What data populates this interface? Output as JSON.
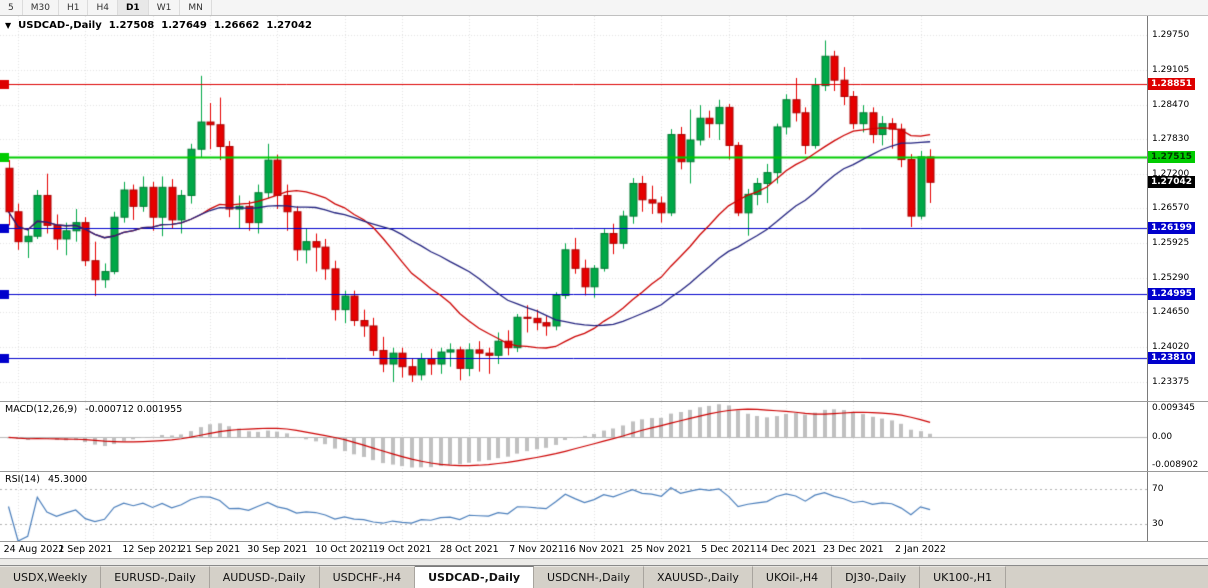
{
  "toolbar": {
    "timeframes": [
      "5",
      "M30",
      "H1",
      "H4",
      "D1",
      "W1",
      "MN"
    ],
    "active": "D1"
  },
  "chart_header": {
    "dropdown_icon": "▼",
    "symbol": "USDCAD-,Daily",
    "open": "1.27508",
    "high": "1.27649",
    "low": "1.26662",
    "close": "1.27042"
  },
  "colors": {
    "up": "#00a847",
    "up_border": "#007a33",
    "down": "#e60000",
    "down_border": "#aa0000",
    "grid": "#e3e3e3",
    "panel_border": "#9a9a9a",
    "current_price_bg": "#000000"
  },
  "chart_data": {
    "type": "candlestick",
    "title": "USDCAD-,Daily",
    "symbol": "USDCAD",
    "timeframe": "Daily",
    "price_range": [
      1.2302,
      1.301
    ],
    "price_axis_ticks": [
      "1.29750",
      "1.29105",
      "1.28470",
      "1.27830",
      "1.27200",
      "1.26570",
      "1.25925",
      "1.25290",
      "1.24650",
      "1.24020",
      "1.23375"
    ],
    "x_labels": [
      "24 Aug 2021",
      "2 Sep 2021",
      "12 Sep 2021",
      "21 Sep 2021",
      "30 Sep 2021",
      "10 Oct 2021",
      "19 Oct 2021",
      "28 Oct 2021",
      "7 Nov 2021",
      "16 Nov 2021",
      "25 Nov 2021",
      "5 Dec 2021",
      "14 Dec 2021",
      "23 Dec 2021",
      "2 Jan 2022"
    ],
    "x_label_bar_indices": [
      1,
      8,
      15,
      21,
      28,
      35,
      41,
      48,
      55,
      61,
      68,
      75,
      81,
      88,
      95
    ],
    "levels": [
      {
        "price": 1.28851,
        "label": "1.28851",
        "color": "#dd0000",
        "text_color": "#ffffff",
        "width": 1
      },
      {
        "price": 1.27515,
        "label": "1.27515",
        "color": "#00cc00",
        "text_color": "#003300",
        "width": 2
      },
      {
        "price": 1.26199,
        "label": "1.26199",
        "color": "#0000cc",
        "text_color": "#ffffff",
        "width": 1
      },
      {
        "price": 1.24995,
        "label": "1.24995",
        "color": "#0000cc",
        "text_color": "#ffffff",
        "width": 1
      },
      {
        "price": 1.2381,
        "label": "1.23810",
        "color": "#0000cc",
        "text_color": "#ffffff",
        "width": 1
      }
    ],
    "current_price": {
      "price": 1.27042,
      "label": "1.27042",
      "color": "#000000",
      "text_color": "#ffffff"
    },
    "overlays": [
      {
        "name": "ma-fast",
        "type": "sma",
        "period": 20,
        "color": "#cc0000"
      },
      {
        "name": "ma-slow",
        "type": "sma",
        "period": 30,
        "color": "#22227f"
      }
    ],
    "candles": [
      [
        1.273,
        1.2745,
        1.2625,
        1.265
      ],
      [
        1.265,
        1.2665,
        1.258,
        1.2595
      ],
      [
        1.2595,
        1.262,
        1.2565,
        1.2605
      ],
      [
        1.2605,
        1.269,
        1.26,
        1.268
      ],
      [
        1.268,
        1.272,
        1.261,
        1.2625
      ],
      [
        1.2625,
        1.2645,
        1.258,
        1.26
      ],
      [
        1.26,
        1.263,
        1.257,
        1.2615
      ],
      [
        1.2615,
        1.2655,
        1.2595,
        1.263
      ],
      [
        1.263,
        1.264,
        1.255,
        1.256
      ],
      [
        1.256,
        1.2595,
        1.2495,
        1.2525
      ],
      [
        1.2525,
        1.2555,
        1.251,
        1.254
      ],
      [
        1.254,
        1.265,
        1.2535,
        1.264
      ],
      [
        1.264,
        1.2705,
        1.263,
        1.269
      ],
      [
        1.269,
        1.27,
        1.2635,
        1.266
      ],
      [
        1.266,
        1.2715,
        1.265,
        1.2695
      ],
      [
        1.2695,
        1.2705,
        1.2615,
        1.264
      ],
      [
        1.264,
        1.2715,
        1.2605,
        1.2695
      ],
      [
        1.2695,
        1.271,
        1.262,
        1.2635
      ],
      [
        1.2635,
        1.269,
        1.261,
        1.268
      ],
      [
        1.268,
        1.2775,
        1.2665,
        1.2765
      ],
      [
        1.2765,
        1.29,
        1.275,
        1.2815
      ],
      [
        1.2815,
        1.285,
        1.2765,
        1.281
      ],
      [
        1.281,
        1.286,
        1.2745,
        1.277
      ],
      [
        1.277,
        1.278,
        1.264,
        1.2655
      ],
      [
        1.2655,
        1.268,
        1.262,
        1.266
      ],
      [
        1.266,
        1.267,
        1.2615,
        1.263
      ],
      [
        1.263,
        1.27,
        1.261,
        1.2685
      ],
      [
        1.2685,
        1.2775,
        1.2675,
        1.2745
      ],
      [
        1.2745,
        1.2755,
        1.2655,
        1.268
      ],
      [
        1.268,
        1.27,
        1.2615,
        1.265
      ],
      [
        1.265,
        1.266,
        1.256,
        1.258
      ],
      [
        1.258,
        1.262,
        1.2555,
        1.2595
      ],
      [
        1.2595,
        1.261,
        1.254,
        1.2585
      ],
      [
        1.2585,
        1.26,
        1.2525,
        1.2545
      ],
      [
        1.2545,
        1.256,
        1.245,
        1.247
      ],
      [
        1.247,
        1.2505,
        1.2445,
        1.2495
      ],
      [
        1.2495,
        1.2505,
        1.244,
        1.245
      ],
      [
        1.245,
        1.247,
        1.242,
        1.244
      ],
      [
        1.244,
        1.2455,
        1.2385,
        1.2395
      ],
      [
        1.2395,
        1.242,
        1.2355,
        1.237
      ],
      [
        1.237,
        1.24,
        1.2337,
        1.239
      ],
      [
        1.239,
        1.24,
        1.2345,
        1.2365
      ],
      [
        1.2365,
        1.238,
        1.2337,
        1.235
      ],
      [
        1.235,
        1.239,
        1.234,
        1.238
      ],
      [
        1.238,
        1.2398,
        1.235,
        1.237
      ],
      [
        1.237,
        1.24,
        1.2352,
        1.2392
      ],
      [
        1.2392,
        1.2408,
        1.2365,
        1.2396
      ],
      [
        1.2396,
        1.2402,
        1.234,
        1.2362
      ],
      [
        1.2362,
        1.2408,
        1.2348,
        1.2396
      ],
      [
        1.2396,
        1.2412,
        1.2356,
        1.239
      ],
      [
        1.239,
        1.24,
        1.2352,
        1.2386
      ],
      [
        1.2386,
        1.2428,
        1.237,
        1.2412
      ],
      [
        1.2412,
        1.2432,
        1.2386,
        1.24
      ],
      [
        1.24,
        1.2462,
        1.2392,
        1.2456
      ],
      [
        1.2456,
        1.2478,
        1.2428,
        1.2454
      ],
      [
        1.2454,
        1.247,
        1.2432,
        1.2446
      ],
      [
        1.2446,
        1.2458,
        1.2422,
        1.244
      ],
      [
        1.244,
        1.2502,
        1.2432,
        1.2496
      ],
      [
        1.2496,
        1.2592,
        1.249,
        1.258
      ],
      [
        1.258,
        1.2602,
        1.2536,
        1.2546
      ],
      [
        1.2546,
        1.2562,
        1.2496,
        1.2512
      ],
      [
        1.2512,
        1.2552,
        1.2492,
        1.2546
      ],
      [
        1.2546,
        1.2618,
        1.254,
        1.261
      ],
      [
        1.261,
        1.2628,
        1.2572,
        1.2592
      ],
      [
        1.2592,
        1.2652,
        1.2582,
        1.2642
      ],
      [
        1.2642,
        1.2712,
        1.2628,
        1.2702
      ],
      [
        1.2702,
        1.2716,
        1.265,
        1.2672
      ],
      [
        1.2672,
        1.2698,
        1.2646,
        1.2666
      ],
      [
        1.2666,
        1.2678,
        1.263,
        1.2648
      ],
      [
        1.2648,
        1.2802,
        1.2642,
        1.2792
      ],
      [
        1.2792,
        1.2806,
        1.2728,
        1.2742
      ],
      [
        1.2742,
        1.2838,
        1.2702,
        1.2782
      ],
      [
        1.2782,
        1.2846,
        1.2772,
        1.2822
      ],
      [
        1.2822,
        1.2836,
        1.2786,
        1.2812
      ],
      [
        1.2812,
        1.2856,
        1.2782,
        1.2842
      ],
      [
        1.2842,
        1.2848,
        1.2746,
        1.2772
      ],
      [
        1.2772,
        1.2778,
        1.2642,
        1.2648
      ],
      [
        1.2648,
        1.2692,
        1.2606,
        1.2682
      ],
      [
        1.2682,
        1.2712,
        1.2662,
        1.2702
      ],
      [
        1.2702,
        1.2738,
        1.2666,
        1.2722
      ],
      [
        1.2722,
        1.2812,
        1.2702,
        1.2806
      ],
      [
        1.2806,
        1.2866,
        1.2792,
        1.2856
      ],
      [
        1.2856,
        1.2896,
        1.2816,
        1.2832
      ],
      [
        1.2832,
        1.2842,
        1.2756,
        1.2772
      ],
      [
        1.2772,
        1.2896,
        1.2766,
        1.2882
      ],
      [
        1.2882,
        1.2965,
        1.2872,
        1.2936
      ],
      [
        1.2936,
        1.2946,
        1.2872,
        1.2892
      ],
      [
        1.2892,
        1.2916,
        1.2846,
        1.2862
      ],
      [
        1.2862,
        1.2872,
        1.2802,
        1.2812
      ],
      [
        1.2812,
        1.2846,
        1.2796,
        1.2832
      ],
      [
        1.2832,
        1.2842,
        1.2776,
        1.2792
      ],
      [
        1.2792,
        1.2826,
        1.2772,
        1.2812
      ],
      [
        1.2812,
        1.2822,
        1.2766,
        1.2802
      ],
      [
        1.2802,
        1.2812,
        1.2732,
        1.2746
      ],
      [
        1.2746,
        1.2756,
        1.2622,
        1.2642
      ],
      [
        1.2642,
        1.2762,
        1.2636,
        1.2751
      ],
      [
        1.27508,
        1.27649,
        1.26662,
        1.27042
      ]
    ],
    "indicators": {
      "macd": {
        "label": "MACD(12,26,9)",
        "current_values": "-0.000712 0.001955",
        "fast": 12,
        "slow": 26,
        "signal_period": 9,
        "range": [
          -0.008902,
          0.009345
        ],
        "axis_ticks": [
          {
            "label": "0.009345",
            "value": 0.009345
          },
          {
            "label": "0.00",
            "value": 0
          },
          {
            "label": "-0.008902",
            "value": -0.008902
          }
        ],
        "histogram_color": "#c0c0c0",
        "signal_color": "#cc0000"
      },
      "rsi": {
        "label": "RSI(14)",
        "current_value": "45.3000",
        "period": 14,
        "range": [
          10,
          90
        ],
        "levels": [
          {
            "label": "70",
            "value": 70
          },
          {
            "label": "30",
            "value": 30
          }
        ],
        "line_color": "#4a7ebb"
      }
    }
  },
  "tabs": {
    "items": [
      "USDX,Weekly",
      "EURUSD-,Daily",
      "AUDUSD-,Daily",
      "USDCHF-,H4",
      "USDCAD-,Daily",
      "USDCNH-,Daily",
      "XAUUSD-,Daily",
      "UKOil-,H4",
      "DJ30-,Daily",
      "UK100-,H1"
    ],
    "active": "USDCAD-,Daily"
  }
}
